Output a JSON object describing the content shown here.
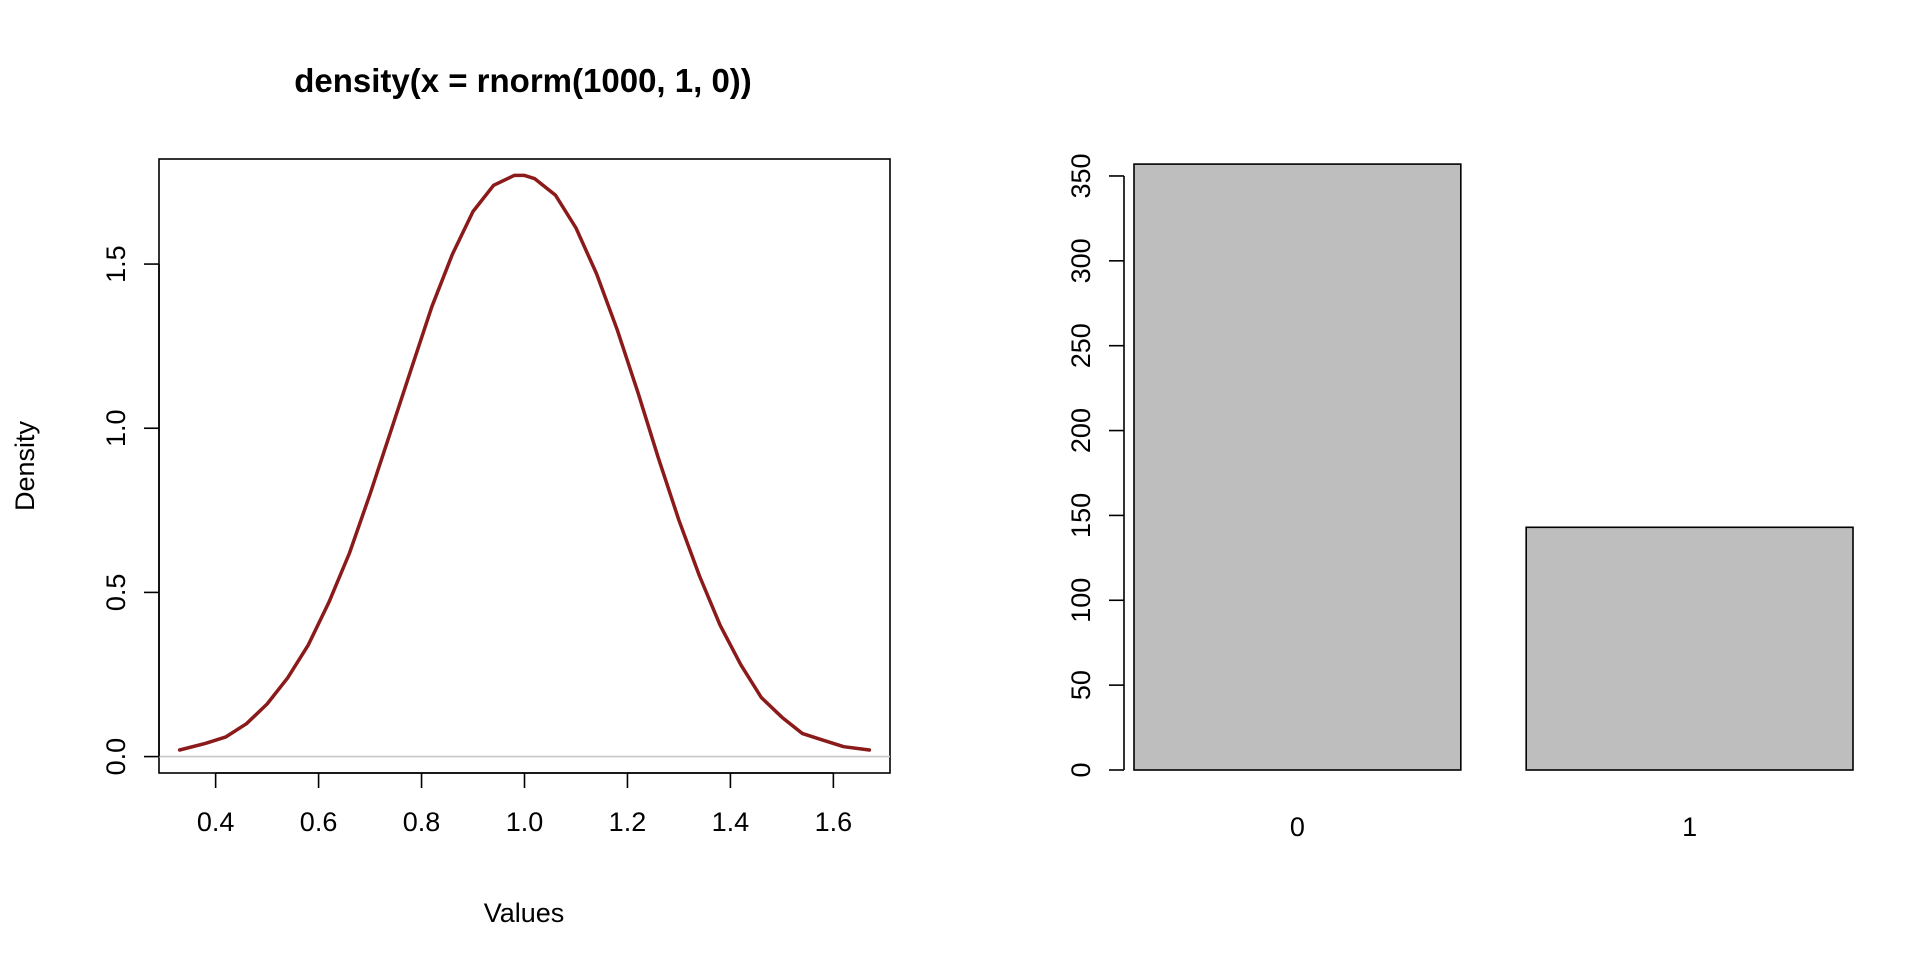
{
  "chart_data": [
    {
      "type": "line",
      "title": "density(x = rnorm(1000, 1, 0))",
      "xlabel": "Values",
      "ylabel": "Density",
      "xlim": [
        0.29,
        1.71
      ],
      "ylim": [
        -0.05,
        1.82
      ],
      "x_ticks": [
        "0.4",
        "0.6",
        "0.8",
        "1.0",
        "1.2",
        "1.4",
        "1.6"
      ],
      "y_ticks": [
        "0.0",
        "0.5",
        "1.0",
        "1.5"
      ],
      "zero_line_color": "#c8c8c8",
      "series": [
        {
          "color": "#8b1a1a",
          "x": [
            0.33,
            0.38,
            0.42,
            0.46,
            0.5,
            0.54,
            0.58,
            0.62,
            0.66,
            0.7,
            0.74,
            0.78,
            0.82,
            0.86,
            0.9,
            0.94,
            0.98,
            1.0,
            1.02,
            1.06,
            1.1,
            1.14,
            1.18,
            1.22,
            1.26,
            1.3,
            1.34,
            1.38,
            1.42,
            1.46,
            1.5,
            1.54,
            1.58,
            1.62,
            1.67
          ],
          "y": [
            0.02,
            0.04,
            0.06,
            0.1,
            0.16,
            0.24,
            0.34,
            0.47,
            0.62,
            0.8,
            0.99,
            1.18,
            1.37,
            1.53,
            1.66,
            1.74,
            1.77,
            1.77,
            1.76,
            1.71,
            1.61,
            1.47,
            1.3,
            1.11,
            0.91,
            0.72,
            0.55,
            0.4,
            0.28,
            0.18,
            0.12,
            0.07,
            0.05,
            0.03,
            0.02
          ]
        }
      ]
    },
    {
      "type": "bar",
      "categories": [
        "0",
        "1"
      ],
      "values": [
        357,
        143
      ],
      "ylim": [
        0,
        360
      ],
      "y_ticks": [
        "0",
        "50",
        "100",
        "150",
        "200",
        "250",
        "300",
        "350"
      ],
      "bar_color": "#bebebe",
      "border_color": "#000000"
    }
  ]
}
